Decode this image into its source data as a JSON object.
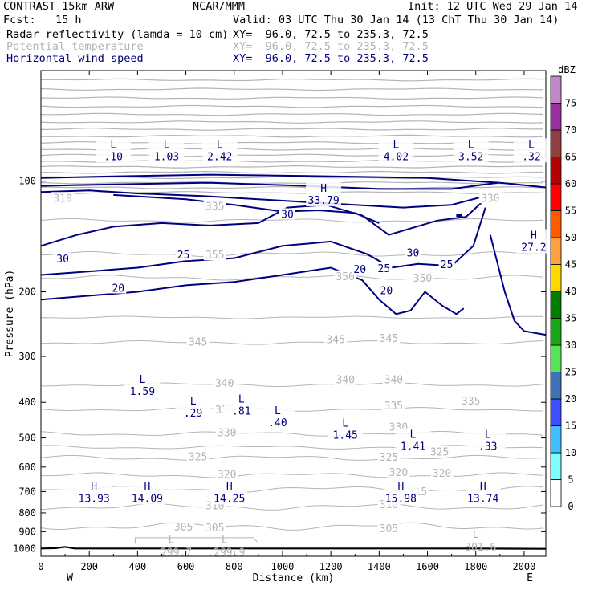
{
  "header": {
    "model": "CONTRAST 15km ARW",
    "center": "NCAR/MMM",
    "init": "Init: 12 UTC Wed 29 Jan 14",
    "fcst": "Fcst:   15 h",
    "valid": "Valid: 03 UTC Thu 30 Jan 14 (13 ChT Thu 30 Jan 14)",
    "fields": [
      {
        "name": "Radar reflectivity (lamda = 10 cm)",
        "xy": "XY=  96.0, 72.5 to 235.3, 72.5",
        "color": "#000000"
      },
      {
        "name": "Potential temperature",
        "xy": "XY=  96.0, 72.5 to 235.3, 72.5",
        "color": "#b4b4b4"
      },
      {
        "name": "Horizontal wind speed",
        "xy": "XY=  96.0, 72.5 to 235.3, 72.5",
        "color": "#00007a"
      }
    ]
  },
  "chart_data": {
    "type": "contour-cross-section",
    "xlabel": "Distance (km)",
    "ylabel": "Pressure (hPa)",
    "x_ticks": [
      "0",
      "200",
      "400",
      "600",
      "800",
      "1000",
      "1200",
      "1400",
      "1600",
      "1800",
      "2000"
    ],
    "y_ticks": [
      "100",
      "200",
      "300",
      "400",
      "500",
      "600",
      "700",
      "800",
      "900",
      "1000"
    ],
    "xlim": [
      0,
      2090
    ],
    "ylim": [
      1050,
      50
    ],
    "y_scale": "log",
    "left_end": "W",
    "right_end": "E",
    "colors": {
      "theta": "#b4b4b4",
      "wind": "#000080"
    },
    "colorbar": {
      "unit": "dBZ",
      "levels": [
        "0",
        "5",
        "10",
        "15",
        "20",
        "25",
        "30",
        "35",
        "40",
        "45",
        "50",
        "55",
        "60",
        "65",
        "70",
        "75"
      ],
      "colors": [
        "#ffffff",
        "#7ffdff",
        "#3fbfff",
        "#3d4fff",
        "#4070b8",
        "#56e456",
        "#18a818",
        "#007e00",
        "#ffd800",
        "#ffa040",
        "#ff5a00",
        "#ff0000",
        "#b40000",
        "#904040",
        "#9a30a0",
        "#c088c8"
      ]
    },
    "theta_labels": [
      {
        "text": "305",
        "x": 590,
        "p": 880
      },
      {
        "text": "305",
        "x": 720,
        "p": 885
      },
      {
        "text": "305",
        "x": 1440,
        "p": 890
      },
      {
        "text": "310",
        "x": 720,
        "p": 770
      },
      {
        "text": "310",
        "x": 1440,
        "p": 765
      },
      {
        "text": "315",
        "x": 1560,
        "p": 705
      },
      {
        "text": "320",
        "x": 770,
        "p": 633
      },
      {
        "text": "320",
        "x": 1480,
        "p": 625
      },
      {
        "text": "320",
        "x": 1660,
        "p": 628
      },
      {
        "text": "325",
        "x": 650,
        "p": 567
      },
      {
        "text": "325",
        "x": 1440,
        "p": 568
      },
      {
        "text": "325",
        "x": 1650,
        "p": 550
      },
      {
        "text": "330",
        "x": 770,
        "p": 487
      },
      {
        "text": "330",
        "x": 1480,
        "p": 470
      },
      {
        "text": "335",
        "x": 760,
        "p": 422
      },
      {
        "text": "335",
        "x": 1460,
        "p": 412
      },
      {
        "text": "335",
        "x": 1780,
        "p": 400
      },
      {
        "text": "340",
        "x": 760,
        "p": 358
      },
      {
        "text": "340",
        "x": 1260,
        "p": 350
      },
      {
        "text": "340",
        "x": 1460,
        "p": 350
      },
      {
        "text": "345",
        "x": 650,
        "p": 276
      },
      {
        "text": "345",
        "x": 1220,
        "p": 272
      },
      {
        "text": "345",
        "x": 1440,
        "p": 270
      },
      {
        "text": "350",
        "x": 1260,
        "p": 183
      },
      {
        "text": "350",
        "x": 1580,
        "p": 185
      },
      {
        "text": "355",
        "x": 720,
        "p": 160
      },
      {
        "text": "335",
        "x": 720,
        "p": 118
      },
      {
        "text": "330",
        "x": 1860,
        "p": 112
      },
      {
        "text": "310",
        "x": 90,
        "p": 112
      }
    ],
    "wind_labels": [
      {
        "text": "30",
        "x": 90,
        "p": 164
      },
      {
        "text": "30",
        "x": 1020,
        "p": 124
      },
      {
        "text": "30",
        "x": 1540,
        "p": 158
      },
      {
        "text": "25",
        "x": 590,
        "p": 160
      },
      {
        "text": "25",
        "x": 1420,
        "p": 174
      },
      {
        "text": "25",
        "x": 1680,
        "p": 170
      },
      {
        "text": "20",
        "x": 320,
        "p": 197
      },
      {
        "text": "20",
        "x": 1320,
        "p": 175
      },
      {
        "text": "20",
        "x": 1430,
        "p": 200
      }
    ],
    "theta_extrema": [
      {
        "kind": "L",
        "value": "299.7",
        "x": 540,
        "p": 985
      },
      {
        "kind": "L",
        "value": "299.9",
        "x": 760,
        "p": 985
      },
      {
        "kind": "L",
        "value": "301.6",
        "x": 1800,
        "p": 955
      }
    ],
    "wind_extrema": [
      {
        "kind": "L",
        "value": ".10",
        "x": 300,
        "p": 82
      },
      {
        "kind": "L",
        "value": "1.03",
        "x": 520,
        "p": 82
      },
      {
        "kind": "L",
        "value": "2.42",
        "x": 740,
        "p": 82
      },
      {
        "kind": "H",
        "value": "33.79",
        "x": 1170,
        "p": 108
      },
      {
        "kind": "L",
        "value": "4.02",
        "x": 1470,
        "p": 82
      },
      {
        "kind": "L",
        "value": "3.52",
        "x": 1780,
        "p": 82
      },
      {
        "kind": "L",
        "value": ".32",
        "x": 2030,
        "p": 82
      },
      {
        "kind": "H",
        "value": "27.2",
        "x": 2040,
        "p": 145
      },
      {
        "kind": "L",
        "value": "1.59",
        "x": 420,
        "p": 358
      },
      {
        "kind": "L",
        "value": ".29",
        "x": 630,
        "p": 410
      },
      {
        "kind": "L",
        "value": ".81",
        "x": 830,
        "p": 405
      },
      {
        "kind": "L",
        "value": ".40",
        "x": 980,
        "p": 435
      },
      {
        "kind": "L",
        "value": "1.45",
        "x": 1260,
        "p": 470
      },
      {
        "kind": "L",
        "value": "1.41",
        "x": 1540,
        "p": 505
      },
      {
        "kind": "L",
        "value": ".33",
        "x": 1850,
        "p": 505
      },
      {
        "kind": "H",
        "value": "13.93",
        "x": 220,
        "p": 700
      },
      {
        "kind": "H",
        "value": "14.09",
        "x": 440,
        "p": 700
      },
      {
        "kind": "H",
        "value": "14.25",
        "x": 780,
        "p": 700
      },
      {
        "kind": "H",
        "value": "15.98",
        "x": 1490,
        "p": 700
      },
      {
        "kind": "H",
        "value": "13.74",
        "x": 1830,
        "p": 700
      }
    ]
  }
}
